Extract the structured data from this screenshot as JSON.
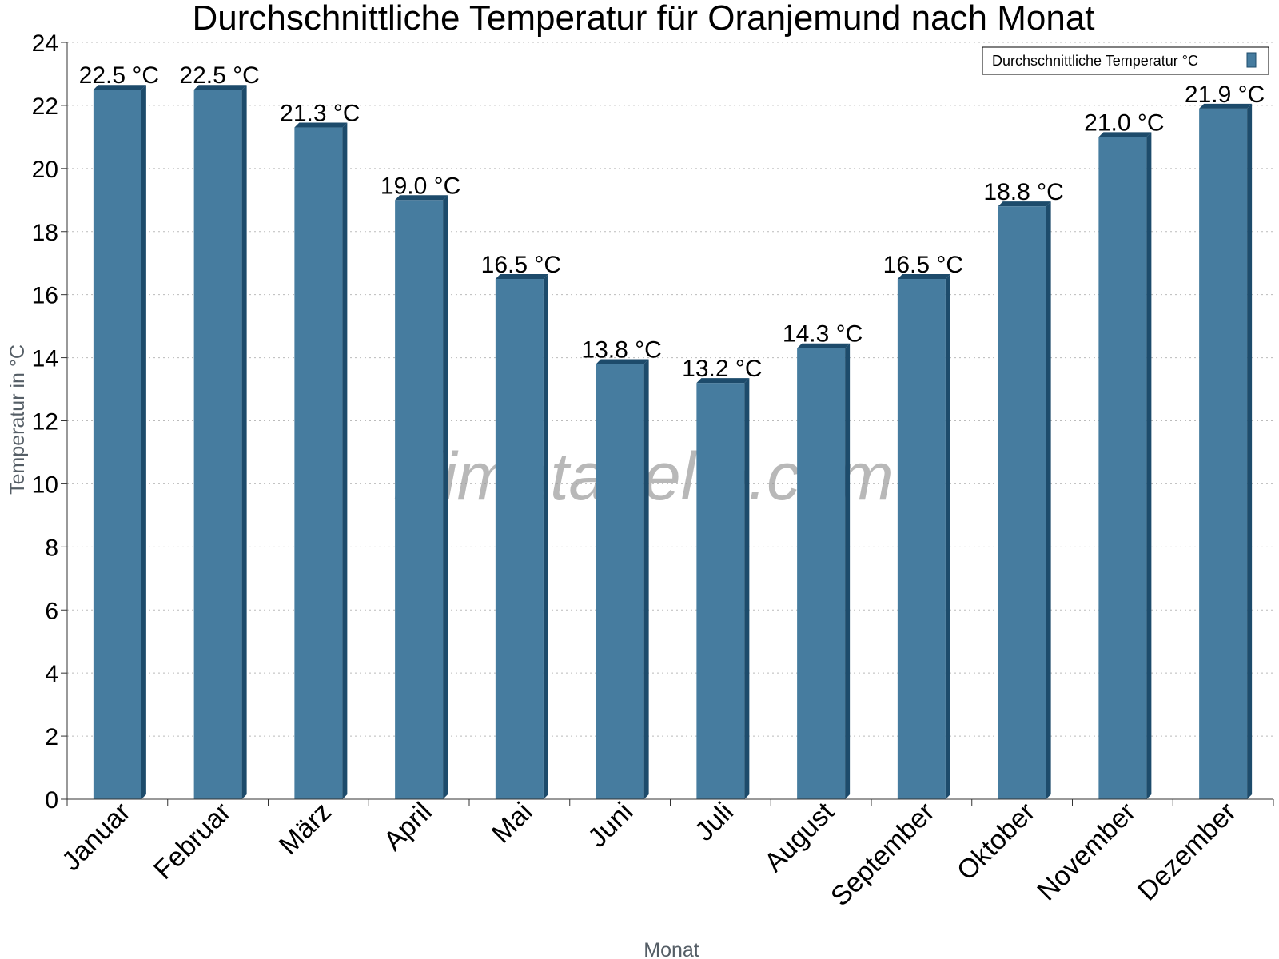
{
  "colors": {
    "bar_front": "#467c9f",
    "bar_side": "#1d4b6b",
    "bar_top": "#1d4b6b",
    "grid": "#bbbbbb",
    "axis": "#333333"
  },
  "watermark": "klimatabelle.com",
  "legend": {
    "label": "Durchschnittliche Temperatur °C"
  },
  "chart_data": {
    "type": "bar",
    "title": "Durchschnittliche Temperatur für Oranjemund nach Monat",
    "xlabel": "Monat",
    "ylabel": "Temperatur in °C",
    "categories": [
      "Januar",
      "Februar",
      "März",
      "April",
      "Mai",
      "Juni",
      "Juli",
      "August",
      "September",
      "Oktober",
      "November",
      "Dezember"
    ],
    "series": [
      {
        "name": "Durchschnittliche Temperatur °C",
        "values": [
          22.5,
          22.5,
          21.3,
          19.0,
          16.5,
          13.8,
          13.2,
          14.3,
          16.5,
          18.8,
          21.0,
          21.9
        ],
        "labels": [
          "22.5 °C",
          "22.5 °C",
          "21.3 °C",
          "19.0 °C",
          "16.5 °C",
          "13.8 °C",
          "13.2 °C",
          "14.3 °C",
          "16.5 °C",
          "18.8 °C",
          "21.0 °C",
          "21.9 °C"
        ]
      }
    ],
    "ylim": [
      0,
      24
    ],
    "yticks": [
      0,
      2,
      4,
      6,
      8,
      10,
      12,
      14,
      16,
      18,
      20,
      22,
      24
    ],
    "grid": true,
    "legend_position": "top-right"
  }
}
